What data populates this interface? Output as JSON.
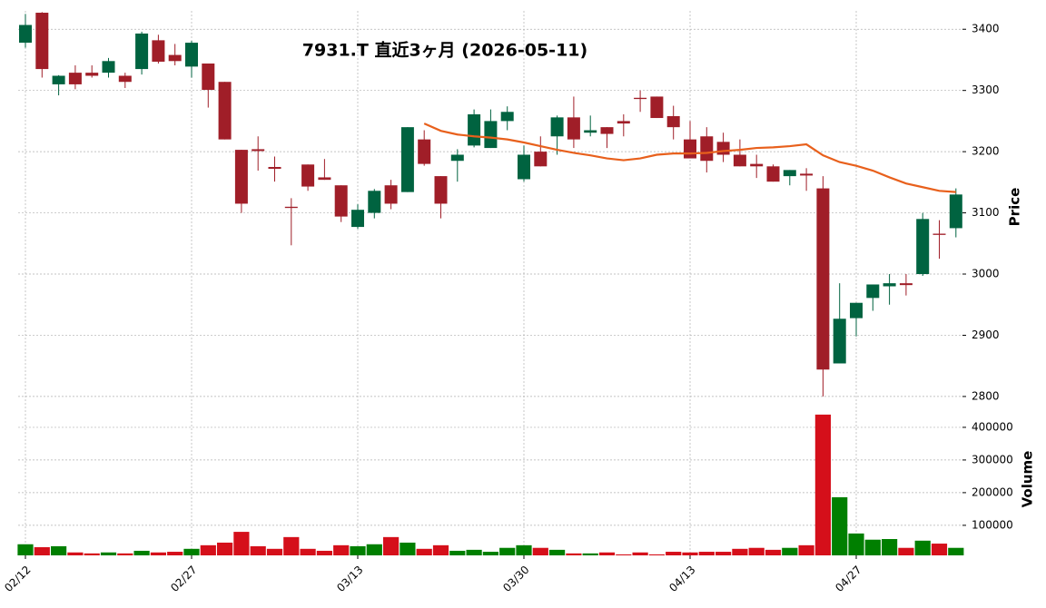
{
  "chart_data": [
    {
      "type": "candlestick",
      "title": "7931.T  直近3ヶ月  (2026-05-11)",
      "ylabel": "Price",
      "up_color": "#006340",
      "down_color": "#a01e28",
      "open": [
        3378,
        3427,
        3310,
        3329,
        3329,
        3329,
        3324,
        3335,
        3382,
        3358,
        3339,
        3344,
        3314,
        3203,
        3204,
        3175,
        3110,
        3179,
        3158,
        3145,
        3077,
        3100,
        3145,
        3134,
        3220,
        3160,
        3185,
        3210,
        3206,
        3250,
        3155,
        3200,
        3225,
        3256,
        3231,
        3240,
        3250,
        3288,
        3290,
        3258,
        3220,
        3225,
        3216,
        3195,
        3180,
        3176,
        3160,
        3164,
        3140,
        2854,
        2928,
        2961,
        2980,
        2985,
        3000,
        3066,
        3075
      ],
      "high": [
        3425,
        3428,
        3325,
        3341,
        3341,
        3353,
        3329,
        3396,
        3391,
        3376,
        3381,
        3344,
        3314,
        3203,
        3225,
        3192,
        3124,
        3179,
        3188,
        3145,
        3114,
        3139,
        3154,
        3240,
        3235,
        3160,
        3204,
        3269,
        3269,
        3274,
        3210,
        3225,
        3259,
        3290,
        3259,
        3240,
        3261,
        3300,
        3290,
        3275,
        3250,
        3240,
        3231,
        3220,
        3195,
        3179,
        3170,
        3173,
        3160,
        2985,
        2953,
        2983,
        3000,
        3000,
        3100,
        3088,
        3140
      ],
      "low": [
        3370,
        3321,
        3292,
        3302,
        3321,
        3321,
        3304,
        3326,
        3344,
        3341,
        3321,
        3272,
        3220,
        3100,
        3169,
        3151,
        3047,
        3136,
        3154,
        3085,
        3074,
        3091,
        3106,
        3134,
        3177,
        3091,
        3151,
        3207,
        3206,
        3235,
        3151,
        3176,
        3195,
        3206,
        3225,
        3206,
        3225,
        3265,
        3255,
        3220,
        3189,
        3166,
        3183,
        3176,
        3157,
        3151,
        3145,
        3136,
        2800,
        2854,
        2898,
        2940,
        2950,
        2965,
        2997,
        3025,
        3060
      ],
      "close": [
        3407,
        3335,
        3324,
        3310,
        3324,
        3348,
        3314,
        3393,
        3347,
        3348,
        3378,
        3301,
        3220,
        3115,
        3201,
        3172,
        3108,
        3143,
        3154,
        3094,
        3105,
        3136,
        3115,
        3240,
        3180,
        3115,
        3195,
        3261,
        3250,
        3265,
        3195,
        3176,
        3256,
        3220,
        3235,
        3229,
        3246,
        3286,
        3255,
        3240,
        3189,
        3185,
        3195,
        3176,
        3176,
        3151,
        3170,
        3161,
        2844,
        2927,
        2953,
        2983,
        2985,
        2982,
        3090,
        3064,
        3130
      ],
      "overlay": {
        "color": "#e8601c",
        "values": [
          null,
          null,
          null,
          null,
          null,
          null,
          null,
          null,
          null,
          null,
          null,
          null,
          null,
          null,
          null,
          null,
          null,
          null,
          null,
          null,
          null,
          null,
          null,
          null,
          3246,
          3234,
          3228,
          3225,
          3223,
          3220,
          3215,
          3209,
          3203,
          3198,
          3194,
          3189,
          3186,
          3189,
          3195,
          3197,
          3197,
          3198,
          3201,
          3203,
          3206,
          3207,
          3209,
          3212,
          3194,
          3183,
          3177,
          3169,
          3158,
          3148,
          3142,
          3136,
          3134
        ]
      },
      "ylim": [
        2788,
        3430
      ],
      "yticks": [
        2800,
        2900,
        3000,
        3100,
        3200,
        3300,
        3400
      ],
      "grid": true
    },
    {
      "type": "bar",
      "ylabel": "Volume",
      "up_color": "#007f00",
      "down_color": "#d50f1a",
      "categories": [
        "02/12",
        null,
        null,
        null,
        null,
        null,
        null,
        null,
        null,
        null,
        "02/27",
        null,
        null,
        null,
        null,
        null,
        null,
        null,
        null,
        null,
        "03/13",
        null,
        null,
        null,
        null,
        null,
        null,
        null,
        null,
        null,
        "03/30",
        null,
        null,
        null,
        null,
        null,
        null,
        null,
        null,
        null,
        "04/13",
        null,
        null,
        null,
        null,
        null,
        null,
        null,
        null,
        null,
        "04/27",
        null,
        null,
        null,
        null,
        null,
        null
      ],
      "values": [
        42000,
        33000,
        36000,
        17000,
        14000,
        17000,
        14000,
        22000,
        17000,
        19000,
        28000,
        39000,
        47000,
        80000,
        36000,
        28000,
        64000,
        28000,
        22000,
        39000,
        36000,
        42000,
        64000,
        47000,
        28000,
        39000,
        22000,
        25000,
        19000,
        31000,
        39000,
        31000,
        25000,
        14000,
        14000,
        17000,
        11000,
        17000,
        11000,
        19000,
        17000,
        19000,
        19000,
        28000,
        31000,
        25000,
        31000,
        39000,
        439000,
        186000,
        75000,
        56000,
        58000,
        31000,
        53000,
        44000,
        31000
      ],
      "ylim": [
        8000,
        472000
      ],
      "yticks": [
        100000,
        200000,
        300000,
        400000
      ],
      "grid": true
    }
  ]
}
